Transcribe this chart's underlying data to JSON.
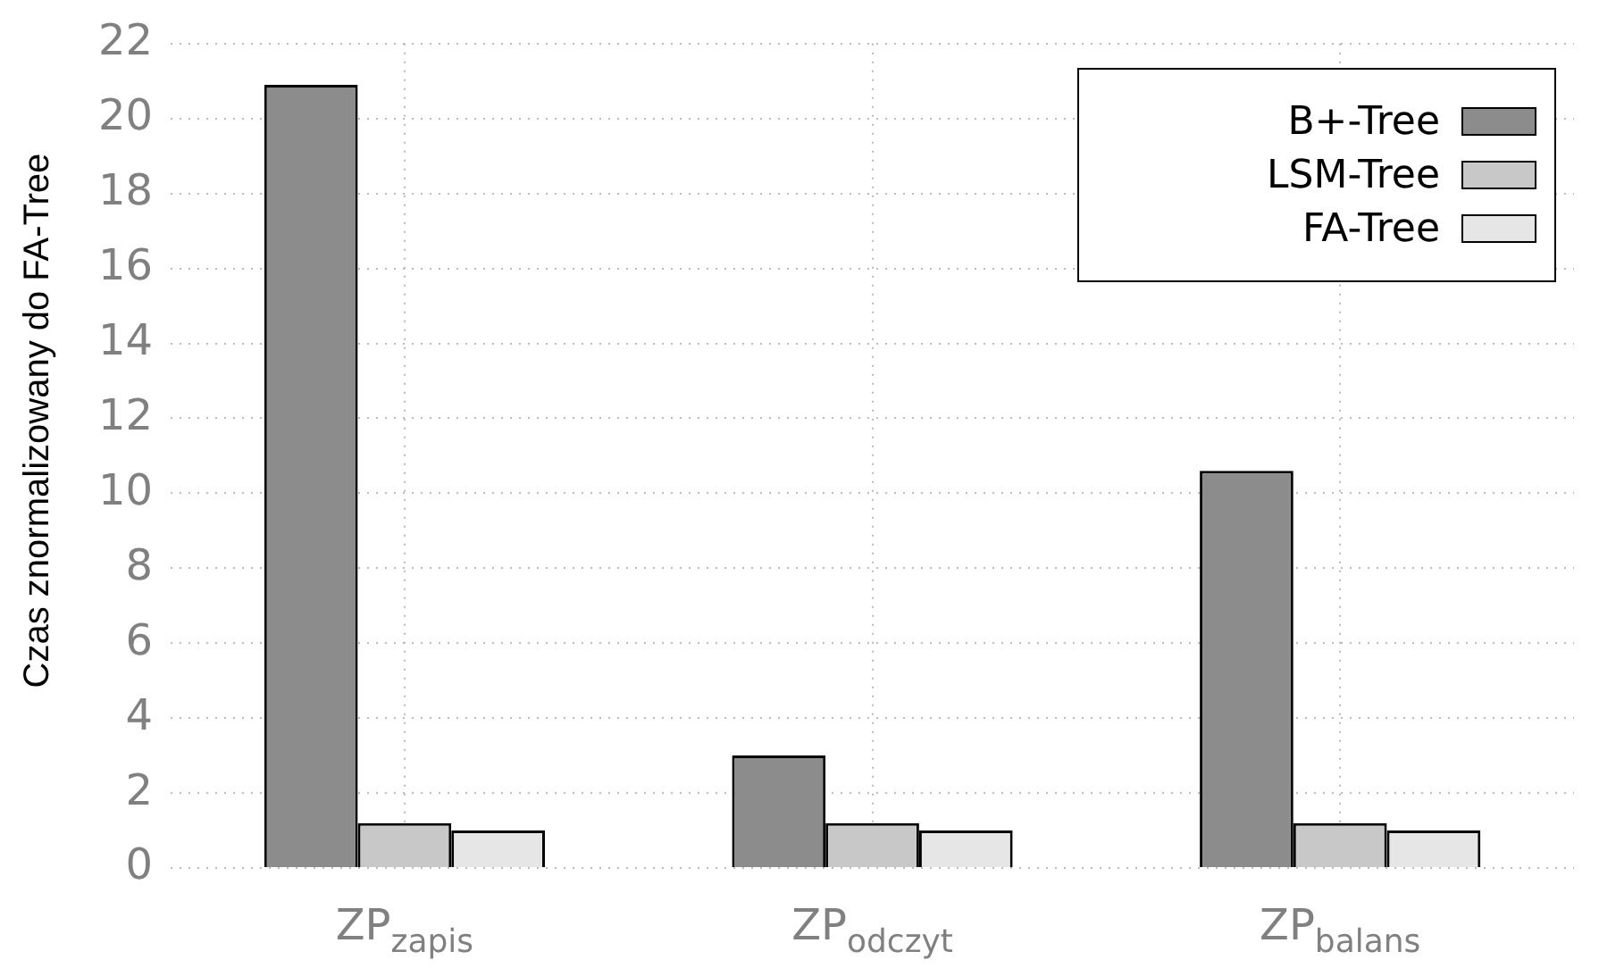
{
  "chart_data": {
    "type": "bar",
    "ylabel": "Czas znormalizowany do FA-Tree",
    "categories": [
      "ZP$_{zapis}$",
      "ZP$_{odczyt}$",
      "ZP$_{balans}$"
    ],
    "series": [
      {
        "name": "B+-Tree",
        "color": "#8c8c8c",
        "values": [
          20.9,
          3.0,
          10.6
        ]
      },
      {
        "name": "LSM-Tree",
        "color": "#c8c8c8",
        "values": [
          1.2,
          1.2,
          1.2
        ]
      },
      {
        "name": "FA-Tree",
        "color": "#e6e6e6",
        "values": [
          1.0,
          1.0,
          1.0
        ]
      }
    ],
    "ylim": [
      0,
      22
    ],
    "yticks": [
      0,
      2,
      4,
      6,
      8,
      10,
      12,
      14,
      16,
      18,
      20,
      22
    ],
    "grid": true,
    "legend": "top right"
  }
}
